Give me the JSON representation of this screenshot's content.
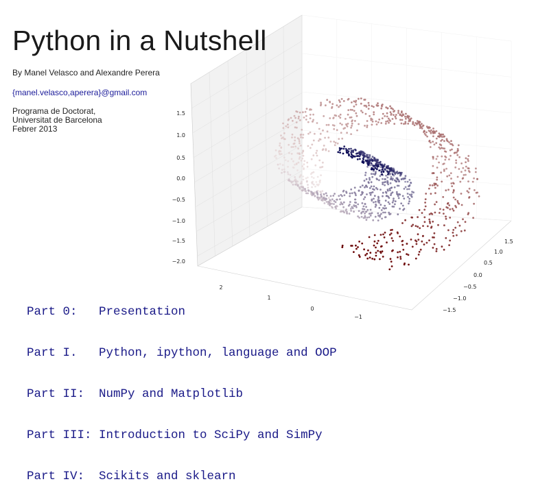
{
  "slide": {
    "title": "Python in a Nutshell",
    "authors": "By Manel Velasco and Alexandre Perera",
    "email": "{manel.velasco,aperera}@gmail.com",
    "affiliation": [
      "Programa de Doctorat,",
      "Universitat de Barcelona",
      "Febrer 2013"
    ],
    "contents": [
      "Part 0:   Presentation",
      "Part I.   Python, ipython, language and OOP",
      "Part II:  NumPy and Matplotlib",
      "Part III: Introduction to SciPy and SimPy",
      "Part IV:  Scikits and sklearn"
    ]
  },
  "chart_data": {
    "type": "scatter",
    "dimensions": 3,
    "title": "",
    "description_series": "Swiss-roll / spiral point cloud colored by position along curve",
    "colors": {
      "start": "#0a0a55",
      "mid": "#e8d8d8",
      "end": "#6a0505"
    },
    "z_ticks": [
      "1.5",
      "1.0",
      "0.5",
      "0.0",
      "−0.5",
      "−1.0",
      "−1.5",
      "−2.0"
    ],
    "x_ticks": [
      "2",
      "1",
      "0",
      "−1"
    ],
    "y_ticks": [
      "1.5",
      "1.0",
      "0.5",
      "0.0",
      "−0.5",
      "−1.0",
      "−1.5"
    ],
    "zlim": [
      -2.0,
      1.5
    ],
    "ylim": [
      -1.5,
      1.5
    ],
    "xlim": [
      -1,
      2
    ],
    "grid": true
  }
}
